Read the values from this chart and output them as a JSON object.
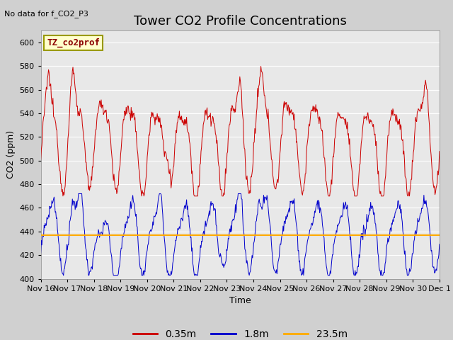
{
  "title": "Tower CO2 Profile Concentrations",
  "subtitle": "No data for f_CO2_P3",
  "xlabel": "Time",
  "ylabel": "CO2 (ppm)",
  "ylim": [
    400,
    610
  ],
  "yticks": [
    400,
    420,
    440,
    460,
    480,
    500,
    520,
    540,
    560,
    580,
    600
  ],
  "legend_label": "TZ_co2prof",
  "series_labels": [
    "0.35m",
    "1.8m",
    "23.5m"
  ],
  "series_colors": [
    "#cc0000",
    "#0000cc",
    "#ffaa00"
  ],
  "flat_line_value": 437,
  "xtick_labels": [
    "Nov 16",
    "Nov 17",
    "Nov 18",
    "Nov 19",
    "Nov 20",
    "Nov 21",
    "Nov 22",
    "Nov 23",
    "Nov 24",
    "Nov 25",
    "Nov 26",
    "Nov 27",
    "Nov 28",
    "Nov 29",
    "Nov 30",
    "Dec 1"
  ],
  "fig_bg_color": "#d0d0d0",
  "plot_bg_color": "#e8e8e8",
  "grid_color": "#ffffff",
  "title_fontsize": 13,
  "axis_fontsize": 9,
  "tick_fontsize": 8,
  "legend_fontsize": 10
}
